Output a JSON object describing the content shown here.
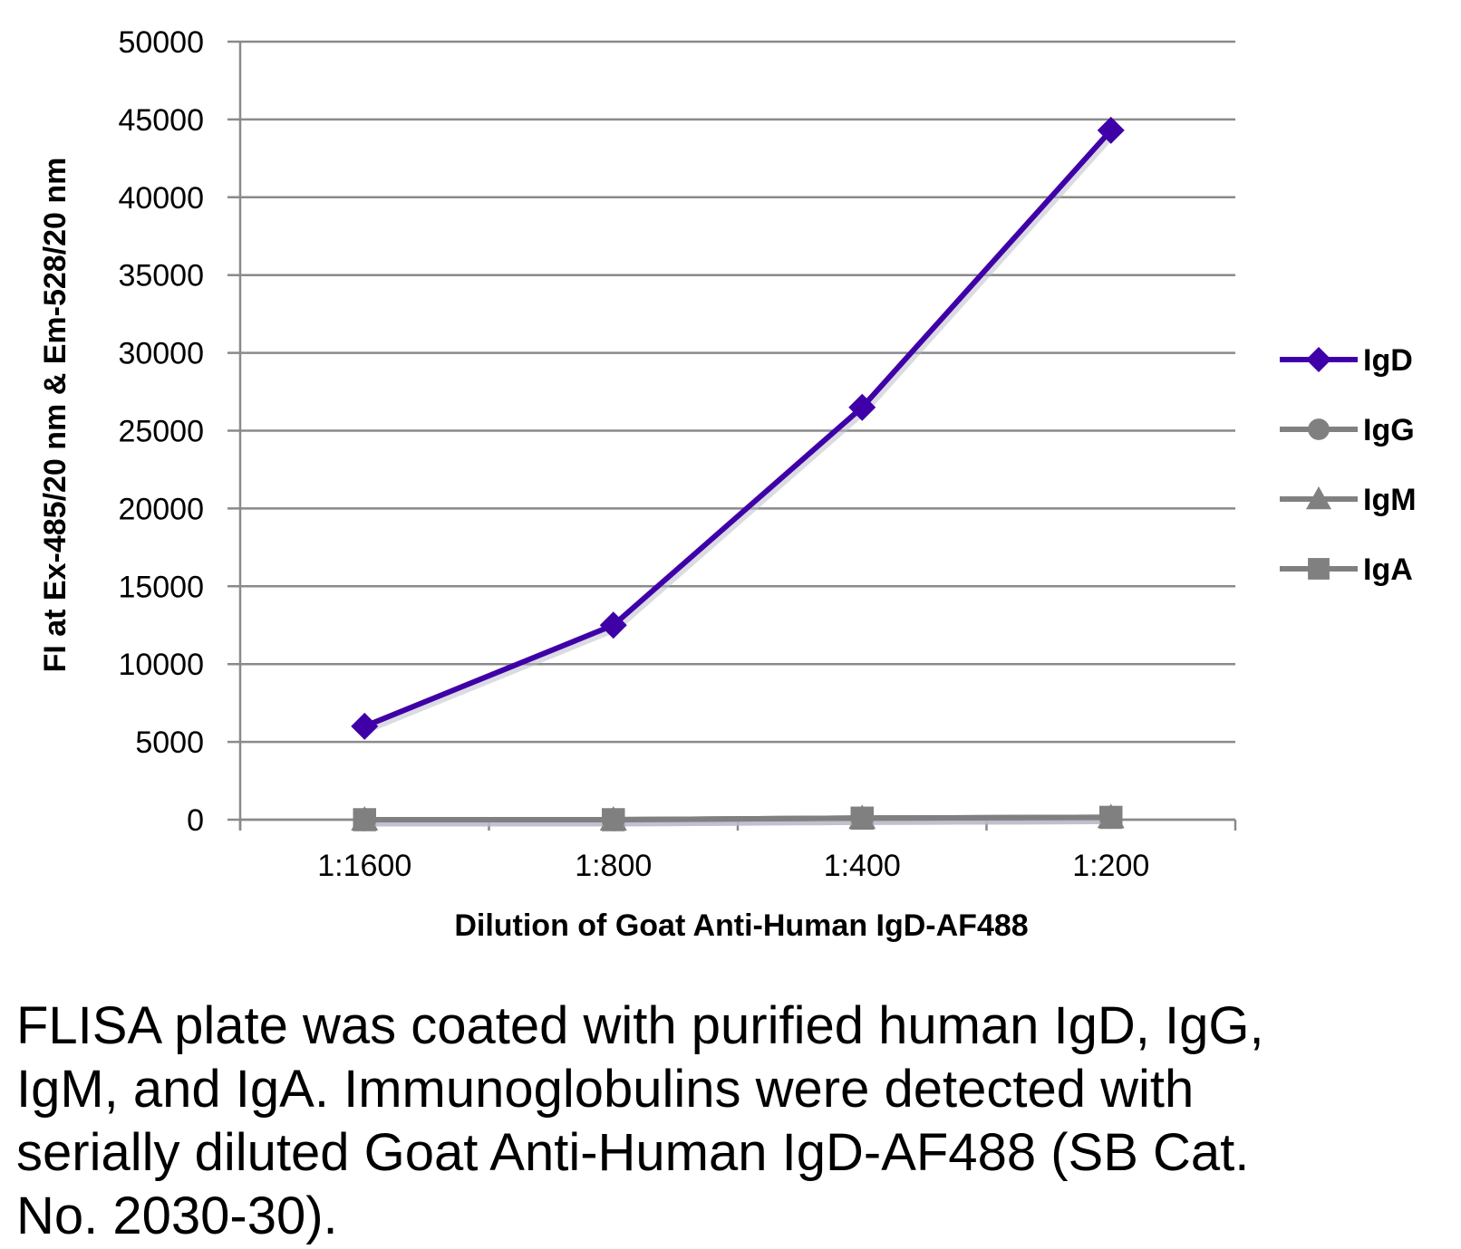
{
  "chart_data": {
    "type": "line",
    "categories": [
      "1:1600",
      "1:800",
      "1:400",
      "1:200"
    ],
    "series": [
      {
        "name": "IgD",
        "values": [
          6000,
          12500,
          26500,
          44300
        ],
        "color": "#3f00a8",
        "marker": "diamond"
      },
      {
        "name": "IgG",
        "values": [
          0,
          0,
          100,
          150
        ],
        "color": "#808080",
        "marker": "circle"
      },
      {
        "name": "IgM",
        "values": [
          0,
          0,
          100,
          150
        ],
        "color": "#808080",
        "marker": "triangle"
      },
      {
        "name": "IgA",
        "values": [
          0,
          0,
          100,
          150
        ],
        "color": "#808080",
        "marker": "square"
      }
    ],
    "xlabel": "Dilution of Goat Anti-Human IgD-AF488",
    "ylabel": "FI at Ex-485/20 nm & Em-528/20 nm",
    "ylim": [
      0,
      50000
    ],
    "yticks": [
      "0",
      "5000",
      "10000",
      "15000",
      "20000",
      "25000",
      "30000",
      "35000",
      "40000",
      "45000",
      "50000"
    ],
    "grid": true,
    "legend": "right"
  },
  "caption": "FLISA plate was coated with purified human IgD, IgG, IgM, and IgA.  Immunoglobulins were detected with serially diluted Goat Anti-Human IgD-AF488 (SB Cat. No. 2030-30)."
}
